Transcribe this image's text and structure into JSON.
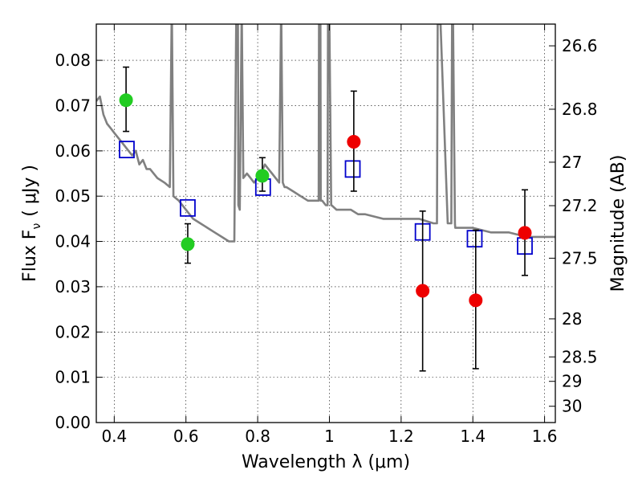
{
  "chart_data": {
    "type": "scatter",
    "xlabel": "Wavelength  λ (μm)",
    "ylabel_left": "Flux  F",
    "ylabel_left_sub": "ν",
    "ylabel_left_unit": "( μJy )",
    "ylabel_right": "Magnitude (AB)",
    "xlim": [
      0.35,
      1.63
    ],
    "ylim": [
      0.0,
      0.088
    ],
    "grid": true,
    "x_ticks": [
      {
        "value": 0.4,
        "label": "0.4"
      },
      {
        "value": 0.6,
        "label": "0.6"
      },
      {
        "value": 0.8,
        "label": "0.8"
      },
      {
        "value": 1.0,
        "label": "1"
      },
      {
        "value": 1.2,
        "label": "1.2"
      },
      {
        "value": 1.4,
        "label": "1.4"
      },
      {
        "value": 1.6,
        "label": "1.6"
      }
    ],
    "y_ticks": [
      {
        "value": 0.0,
        "label": "0.00"
      },
      {
        "value": 0.01,
        "label": "0.01"
      },
      {
        "value": 0.02,
        "label": "0.02"
      },
      {
        "value": 0.03,
        "label": "0.03"
      },
      {
        "value": 0.04,
        "label": "0.04"
      },
      {
        "value": 0.05,
        "label": "0.05"
      },
      {
        "value": 0.06,
        "label": "0.06"
      },
      {
        "value": 0.07,
        "label": "0.07"
      },
      {
        "value": 0.08,
        "label": "0.08"
      }
    ],
    "right_ticks": [
      {
        "label": "26.6",
        "flux": 0.0832
      },
      {
        "label": "26.8",
        "flux": 0.0692
      },
      {
        "label": "27",
        "flux": 0.0575
      },
      {
        "label": "27.2",
        "flux": 0.0479
      },
      {
        "label": "27.5",
        "flux": 0.0363
      },
      {
        "label": "28",
        "flux": 0.0229
      },
      {
        "label": "28.5",
        "flux": 0.0145
      },
      {
        "label": "29",
        "flux": 0.0091
      },
      {
        "label": "30",
        "flux": 0.0036
      }
    ],
    "series": [
      {
        "kind": "model",
        "color": "#808080",
        "x": [
          0.35,
          0.36,
          0.37,
          0.38,
          0.39,
          0.4,
          0.41,
          0.42,
          0.43,
          0.44,
          0.45,
          0.46,
          0.47,
          0.48,
          0.49,
          0.5,
          0.52,
          0.54,
          0.555,
          0.56,
          0.561,
          0.565,
          0.58,
          0.6,
          0.62,
          0.64,
          0.66,
          0.68,
          0.7,
          0.72,
          0.735,
          0.74,
          0.745,
          0.746,
          0.75,
          0.755,
          0.756,
          0.76,
          0.77,
          0.78,
          0.79,
          0.8,
          0.81,
          0.82,
          0.83,
          0.84,
          0.85,
          0.86,
          0.865,
          0.866,
          0.87,
          0.875,
          0.88,
          0.9,
          0.92,
          0.94,
          0.96,
          0.97,
          0.971,
          0.975,
          0.976,
          0.98,
          0.99,
          0.995,
          0.996,
          1.0,
          1.005,
          1.006,
          1.02,
          1.04,
          1.06,
          1.08,
          1.1,
          1.15,
          1.2,
          1.25,
          1.29,
          1.3,
          1.302,
          1.31,
          1.33,
          1.34,
          1.342,
          1.345,
          1.35,
          1.351,
          1.36,
          1.4,
          1.45,
          1.5,
          1.55,
          1.6,
          1.63
        ],
        "y": [
          0.071,
          0.072,
          0.068,
          0.066,
          0.065,
          0.064,
          0.063,
          0.062,
          0.061,
          0.06,
          0.059,
          0.06,
          0.057,
          0.058,
          0.056,
          0.056,
          0.054,
          0.053,
          0.052,
          0.088,
          0.088,
          0.05,
          0.049,
          0.047,
          0.045,
          0.044,
          0.043,
          0.042,
          0.041,
          0.04,
          0.04,
          0.088,
          0.088,
          0.048,
          0.047,
          0.088,
          0.088,
          0.054,
          0.055,
          0.054,
          0.053,
          0.054,
          0.055,
          0.057,
          0.056,
          0.055,
          0.054,
          0.053,
          0.088,
          0.088,
          0.053,
          0.052,
          0.052,
          0.051,
          0.05,
          0.049,
          0.049,
          0.049,
          0.088,
          0.088,
          0.049,
          0.049,
          0.048,
          0.048,
          0.088,
          0.088,
          0.048,
          0.048,
          0.047,
          0.047,
          0.047,
          0.046,
          0.046,
          0.045,
          0.045,
          0.045,
          0.044,
          0.044,
          0.088,
          0.088,
          0.044,
          0.044,
          0.088,
          0.088,
          0.044,
          0.043,
          0.043,
          0.043,
          0.042,
          0.042,
          0.041,
          0.041,
          0.041
        ]
      },
      {
        "kind": "synthetic_photometry",
        "marker": "open-square",
        "color": "#0000cc",
        "x": [
          0.435,
          0.605,
          0.815,
          1.065,
          1.26,
          1.405,
          1.545
        ],
        "y": [
          0.0603,
          0.0474,
          0.052,
          0.056,
          0.0421,
          0.0406,
          0.039
        ]
      },
      {
        "kind": "observed_green",
        "marker": "circle",
        "color": "#22cc22",
        "x": [
          0.433,
          0.605,
          0.813
        ],
        "y": [
          0.0712,
          0.0394,
          0.0545
        ],
        "err_low": [
          0.0643,
          0.0352,
          0.0511
        ],
        "err_high": [
          0.0785,
          0.0439,
          0.0585
        ]
      },
      {
        "kind": "observed_red",
        "marker": "circle",
        "color": "#ee0000",
        "x": [
          1.068,
          1.26,
          1.408,
          1.545
        ],
        "y": [
          0.062,
          0.0291,
          0.027,
          0.0419
        ],
        "err_low": [
          0.0511,
          0.0114,
          0.0119,
          0.0325
        ],
        "err_high": [
          0.0732,
          0.0467,
          0.0425,
          0.0514
        ]
      }
    ]
  }
}
